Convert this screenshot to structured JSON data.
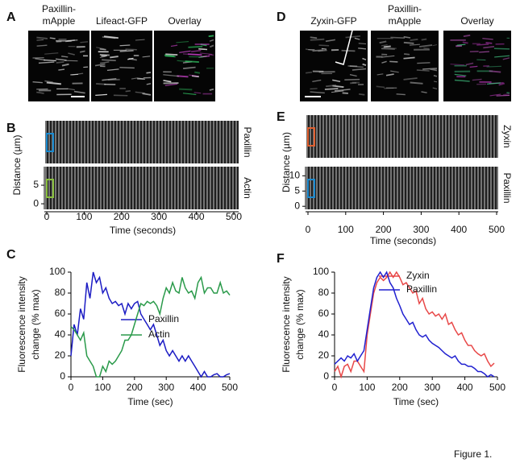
{
  "panels": {
    "A": {
      "label": "A",
      "image_titles": [
        [
          "Paxillin-",
          "mApple"
        ],
        [
          "Lifeact-GFP"
        ],
        [
          "Overlay"
        ]
      ]
    },
    "D": {
      "label": "D",
      "image_titles": [
        [
          "Zyxin-GFP"
        ],
        [
          "Paxillin-",
          "mApple"
        ],
        [
          "Overlay"
        ]
      ]
    }
  },
  "chart_data": [
    {
      "type": "kymograph",
      "panel_label": "B",
      "rows": [
        "Paxillin",
        "Actin"
      ],
      "xlabel": "Time (seconds)",
      "ylabel": "Distance (µm)",
      "xlim": [
        0,
        500
      ],
      "xticks": [
        0,
        100,
        200,
        300,
        400,
        500
      ],
      "ylim": [
        -1.5,
        10
      ],
      "yticks": [
        0,
        5
      ]
    },
    {
      "type": "line",
      "panel_label": "C",
      "xlabel": "Time (sec)",
      "ylabel": [
        "Fluorescence intensity",
        "change (% max)"
      ],
      "x": [
        0,
        10,
        20,
        30,
        40,
        50,
        60,
        70,
        80,
        90,
        100,
        110,
        120,
        130,
        140,
        150,
        160,
        170,
        180,
        190,
        200,
        210,
        220,
        230,
        240,
        250,
        260,
        270,
        280,
        290,
        300,
        310,
        320,
        330,
        340,
        350,
        360,
        370,
        380,
        390,
        400,
        410,
        420,
        430,
        440,
        450,
        460,
        470,
        480,
        490,
        500
      ],
      "series": [
        {
          "name": "Paxillin",
          "color": "#1c1cc4",
          "values": [
            20,
            50,
            40,
            65,
            55,
            90,
            75,
            100,
            90,
            95,
            80,
            85,
            75,
            70,
            72,
            68,
            70,
            60,
            70,
            65,
            70,
            72,
            60,
            55,
            50,
            45,
            50,
            40,
            30,
            35,
            25,
            20,
            25,
            20,
            15,
            20,
            15,
            20,
            15,
            10,
            5,
            0,
            5,
            0,
            0,
            2,
            3,
            0,
            0,
            2,
            3
          ]
        },
        {
          "name": "Actin",
          "color": "#2a9a4a",
          "values": [
            48,
            45,
            40,
            35,
            42,
            20,
            15,
            10,
            0,
            0,
            10,
            5,
            15,
            12,
            15,
            20,
            25,
            35,
            35,
            40,
            50,
            60,
            70,
            68,
            72,
            70,
            72,
            68,
            60,
            75,
            85,
            80,
            90,
            82,
            80,
            95,
            85,
            80,
            82,
            75,
            90,
            95,
            80,
            85,
            85,
            80,
            80,
            90,
            80,
            82,
            78
          ]
        }
      ],
      "xlim": [
        0,
        500
      ],
      "xticks": [
        0,
        100,
        200,
        300,
        400,
        500
      ],
      "ylim": [
        0,
        100
      ],
      "yticks": [
        0,
        20,
        40,
        60,
        80,
        100
      ]
    },
    {
      "type": "kymograph",
      "panel_label": "E",
      "rows": [
        "Zyxin",
        "Paxillin"
      ],
      "xlabel": "Time (seconds)",
      "ylabel": "Distance (µm)",
      "xlim": [
        0,
        500
      ],
      "xticks": [
        0,
        100,
        200,
        300,
        400,
        500
      ],
      "ylim": [
        -1,
        13
      ],
      "yticks": [
        0,
        5,
        10
      ]
    },
    {
      "type": "line",
      "panel_label": "F",
      "xlabel": "Time (sec)",
      "ylabel": [
        "Fluorescence intensity",
        "change (% max)"
      ],
      "x": [
        0,
        10,
        20,
        30,
        40,
        50,
        60,
        70,
        80,
        90,
        100,
        110,
        120,
        130,
        140,
        150,
        160,
        170,
        180,
        190,
        200,
        210,
        220,
        230,
        240,
        250,
        260,
        270,
        280,
        290,
        300,
        310,
        320,
        330,
        340,
        350,
        360,
        370,
        380,
        390,
        400,
        410,
        420,
        430,
        440,
        450,
        460,
        470,
        480,
        490
      ],
      "series": [
        {
          "name": "Zyxin",
          "color": "#e84848",
          "values": [
            5,
            10,
            0,
            10,
            12,
            5,
            15,
            15,
            10,
            5,
            40,
            60,
            80,
            90,
            95,
            92,
            95,
            100,
            95,
            100,
            95,
            88,
            90,
            85,
            80,
            82,
            70,
            75,
            65,
            60,
            62,
            58,
            60,
            55,
            60,
            50,
            52,
            45,
            40,
            42,
            35,
            30,
            30,
            25,
            22,
            20,
            22,
            15,
            10,
            13
          ]
        },
        {
          "name": "Paxillin",
          "color": "#2020d0",
          "values": [
            12,
            15,
            18,
            15,
            20,
            18,
            22,
            15,
            20,
            25,
            45,
            65,
            85,
            95,
            100,
            95,
            100,
            90,
            85,
            75,
            68,
            60,
            55,
            50,
            52,
            45,
            40,
            38,
            40,
            35,
            32,
            30,
            28,
            25,
            22,
            20,
            18,
            20,
            15,
            12,
            12,
            10,
            10,
            8,
            5,
            5,
            3,
            0,
            2,
            0
          ]
        }
      ],
      "xlim": [
        0,
        500
      ],
      "xticks": [
        0,
        100,
        200,
        300,
        400,
        500
      ],
      "ylim": [
        0,
        100
      ],
      "yticks": [
        0,
        20,
        40,
        60,
        80,
        100
      ]
    }
  ],
  "caption": "Figure 1."
}
